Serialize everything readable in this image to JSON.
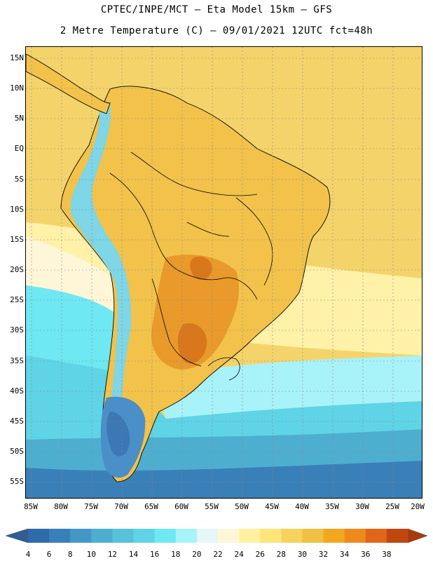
{
  "title_line1": "CPTEC/INPE/MCT –  Eta Model 15km – GFS",
  "title_line2": "2 Metre Temperature (C) – 09/01/2021 12UTC fct=48h",
  "lat_labels": [
    "15N",
    "10N",
    "5N",
    "EQ",
    "5S",
    "10S",
    "15S",
    "20S",
    "25S",
    "30S",
    "35S",
    "40S",
    "45S",
    "50S",
    "55S"
  ],
  "lon_labels": [
    "85W",
    "80W",
    "75W",
    "70W",
    "65W",
    "60W",
    "55W",
    "50W",
    "45W",
    "40W",
    "35W",
    "30W",
    "25W",
    "20W"
  ],
  "colorbar": {
    "labels": [
      "4",
      "6",
      "8",
      "10",
      "12",
      "14",
      "16",
      "18",
      "20",
      "22",
      "24",
      "26",
      "28",
      "30",
      "32",
      "34",
      "36",
      "38"
    ],
    "colors": [
      "#2f6ba8",
      "#3a80b8",
      "#4497c4",
      "#4eaed0",
      "#58c2da",
      "#5fd4e6",
      "#6ee8f2",
      "#a8f2fa",
      "#e4f6f8",
      "#fff6d8",
      "#fff1a0",
      "#fde57a",
      "#f6d45c",
      "#efc043",
      "#f2a81e",
      "#ee8a1a",
      "#e0661a",
      "#c04810"
    ]
  },
  "map_colors": {
    "ocean_north": "#f4d46a",
    "ocean_warm": "#f7e07a",
    "ocean_mild": "#fff1a8",
    "ocean_cool": "#5fd4e6",
    "ocean_cold": "#4eaed0",
    "ocean_colder": "#3a80b8",
    "land_warm": "#f2c24a",
    "land_hot": "#e99a2a",
    "land_hotter": "#d8771c",
    "andes_cold": "#7ed6e6",
    "andes_snow": "#3b78b4",
    "patagonia_cold": "#4a8fc8"
  }
}
